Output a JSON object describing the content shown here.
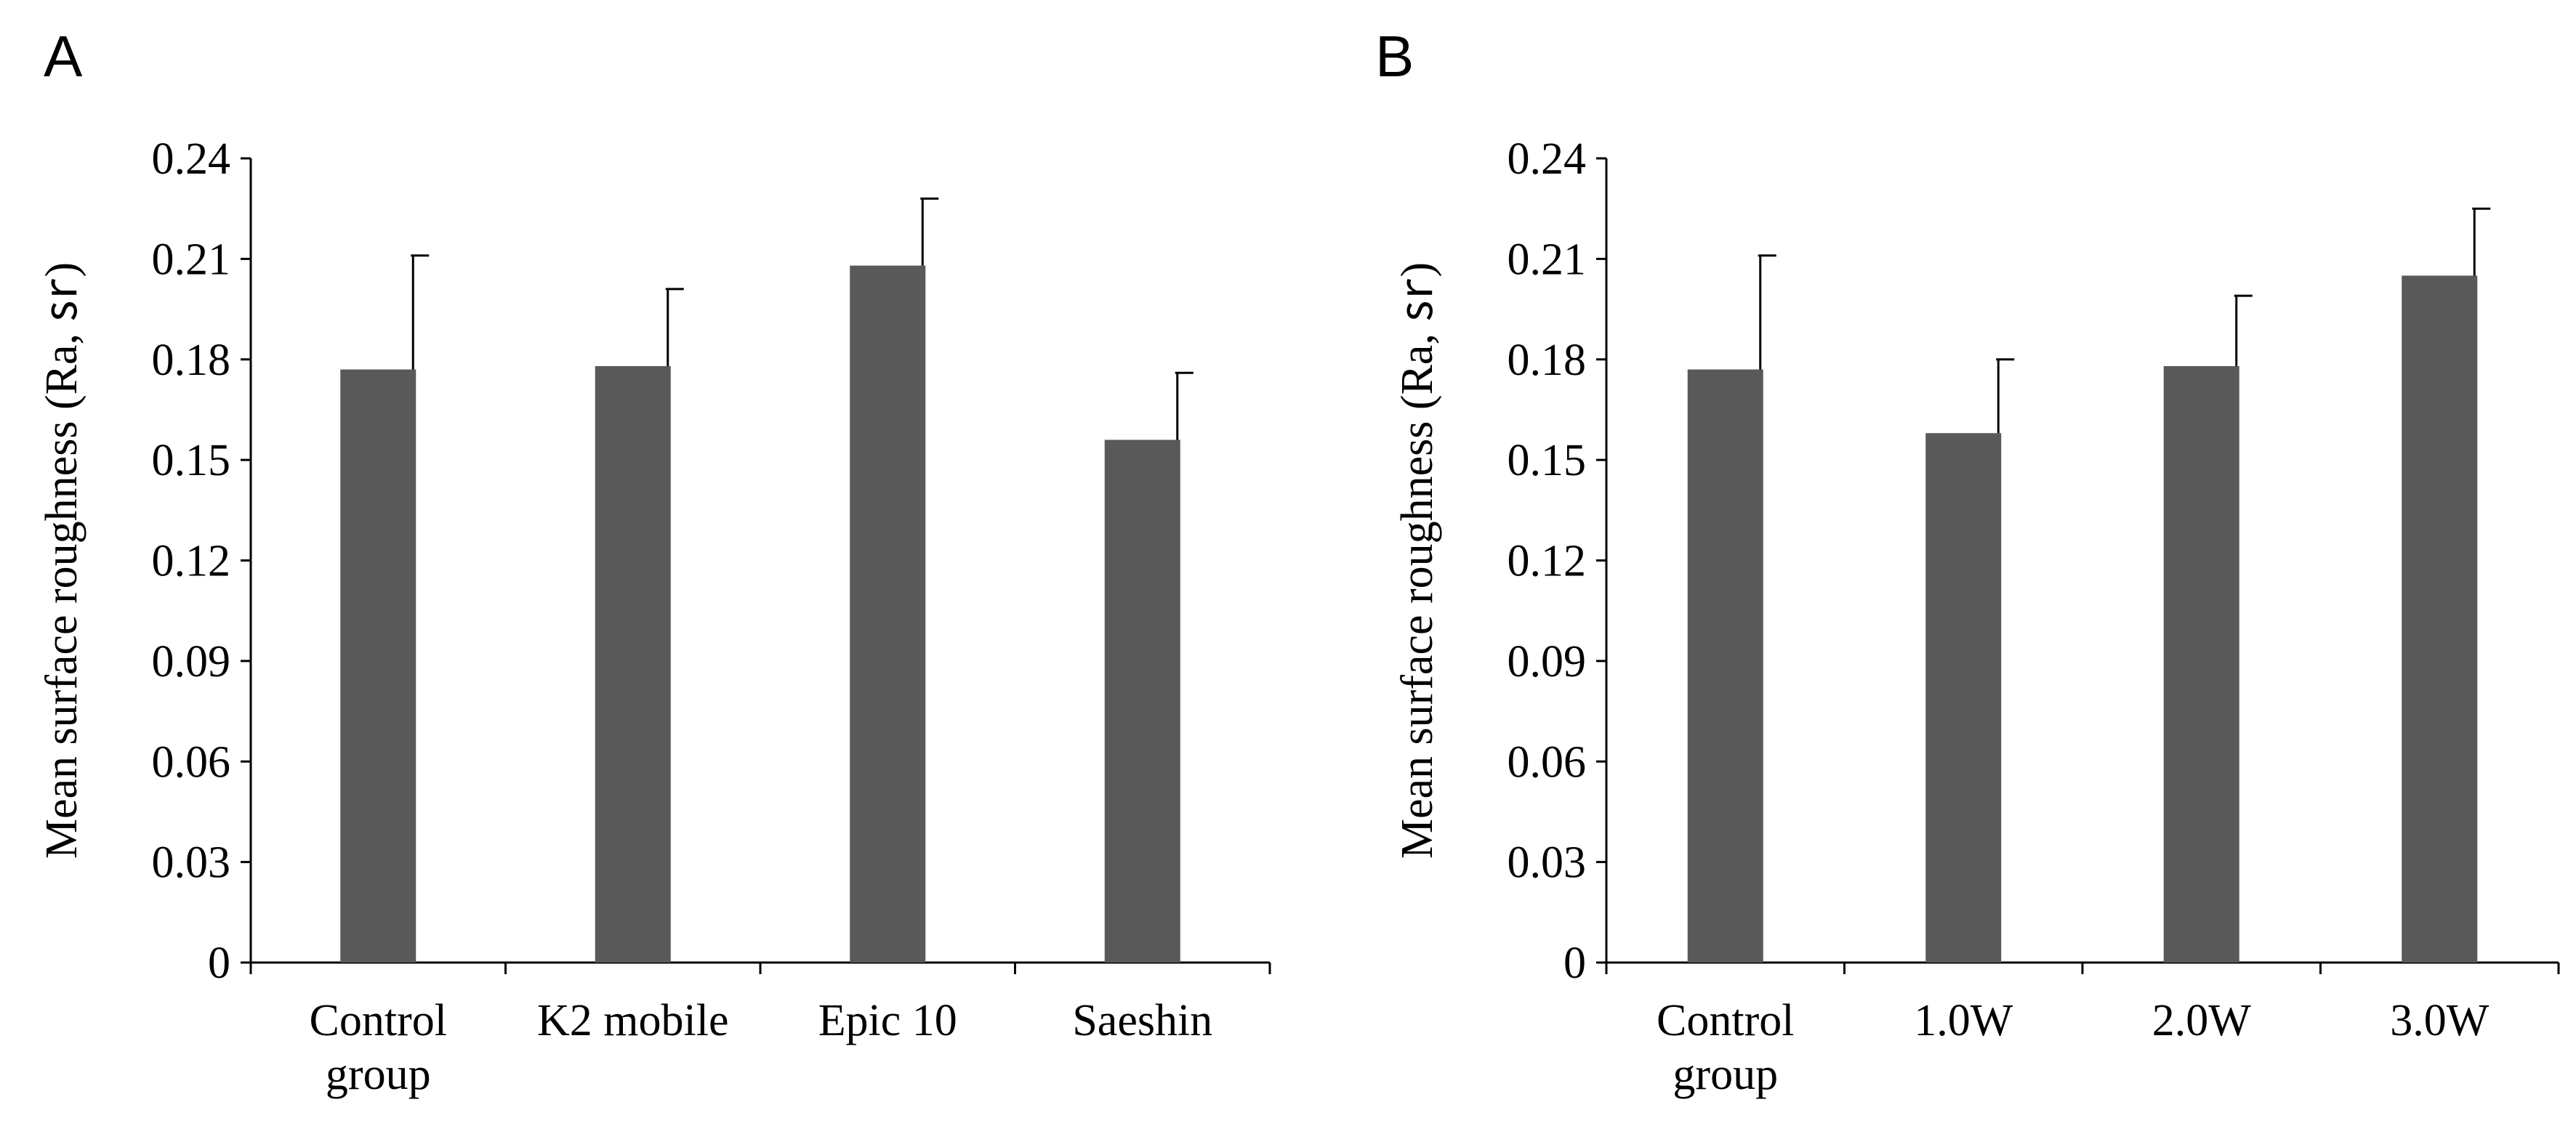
{
  "chart_data": [
    {
      "type": "bar",
      "panel": "A",
      "categories": [
        [
          "Control",
          "group"
        ],
        [
          "K2 mobile"
        ],
        [
          "Epic 10"
        ],
        [
          "Saeshin"
        ]
      ],
      "values": [
        0.177,
        0.178,
        0.208,
        0.156
      ],
      "errors": [
        0.034,
        0.023,
        0.02,
        0.02
      ],
      "ylabel": "Mean surface roughness (Ra, ㏛)",
      "xlabel": "",
      "ylim": [
        0,
        0.24
      ],
      "yticks": [
        "0",
        "0.03",
        "0.06",
        "0.09",
        "0.12",
        "0.15",
        "0.18",
        "0.21",
        "0.24"
      ],
      "bar_color": "#595959"
    },
    {
      "type": "bar",
      "panel": "B",
      "categories": [
        [
          "Control",
          "group"
        ],
        [
          "1.0W"
        ],
        [
          "2.0W"
        ],
        [
          "3.0W"
        ]
      ],
      "values": [
        0.177,
        0.158,
        0.178,
        0.205
      ],
      "errors": [
        0.034,
        0.022,
        0.021,
        0.02
      ],
      "ylabel": "Mean surface roughness (Ra, ㏛)",
      "xlabel": "",
      "ylim": [
        0,
        0.24
      ],
      "yticks": [
        "0",
        "0.03",
        "0.06",
        "0.09",
        "0.12",
        "0.15",
        "0.18",
        "0.21",
        "0.24"
      ],
      "bar_color": "#595959"
    }
  ]
}
